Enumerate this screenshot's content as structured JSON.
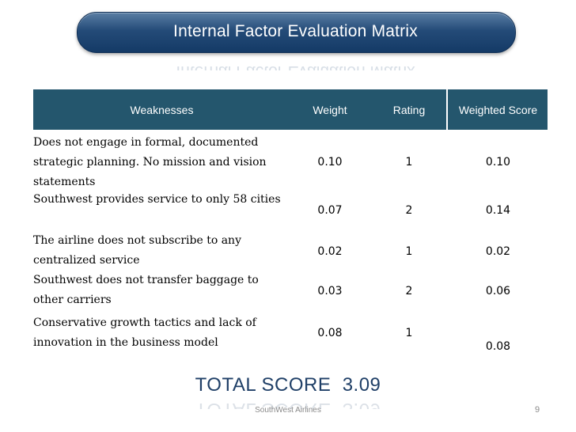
{
  "slide": {
    "title": "Internal Factor Evaluation Matrix",
    "footer": "SouthWest Airlines",
    "page_number": "9"
  },
  "table": {
    "headers": {
      "factor": "Weaknesses",
      "weight": "Weight",
      "rating": "Rating",
      "score": "Weighted Score"
    },
    "rows": [
      {
        "factor": "Does not engage in formal, documented strategic planning. No mission and vision statements",
        "weight": "0.10",
        "rating": "1",
        "score": "0.10"
      },
      {
        "factor": "Southwest provides service to only 58 cities",
        "weight": "0.07",
        "rating": "2",
        "score": "0.14"
      },
      {
        "factor": "The airline does not subscribe to any centralized service",
        "weight": "0.02",
        "rating": "1",
        "score": "0.02"
      },
      {
        "factor": "Southwest does not transfer baggage to other carriers",
        "weight": "0.03",
        "rating": "2",
        "score": "0.06"
      },
      {
        "factor": "Conservative growth tactics and lack of innovation in the business model",
        "weight": "0.08",
        "rating": "1",
        "score": "0.08"
      }
    ]
  },
  "total": {
    "label": "TOTAL SCORE",
    "value": "3.09"
  }
}
